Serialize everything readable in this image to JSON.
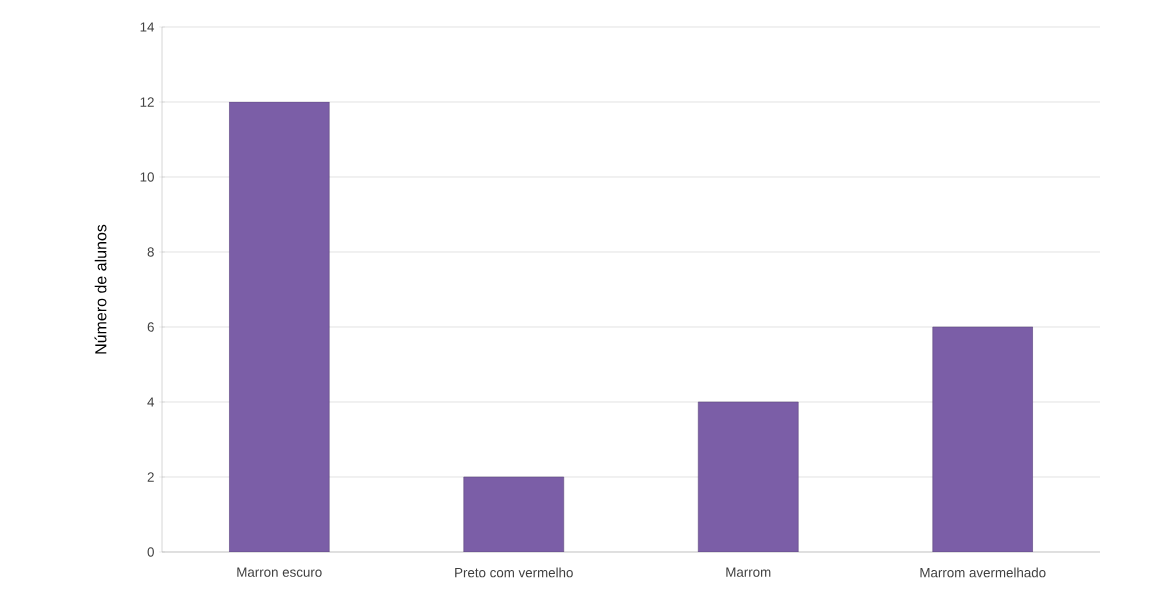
{
  "chart_data": {
    "type": "bar",
    "ylabel": "Número de alunos",
    "categories": [
      "Marron escuro",
      "Preto com vermelho",
      "Marrom",
      "Marrom avermelhado"
    ],
    "values": [
      12,
      2,
      4,
      6
    ],
    "color": "#7b5ea7",
    "ylim": [
      0,
      14
    ],
    "yticks": [
      0,
      2,
      4,
      6,
      8,
      10,
      12,
      14
    ],
    "grid": "y"
  }
}
